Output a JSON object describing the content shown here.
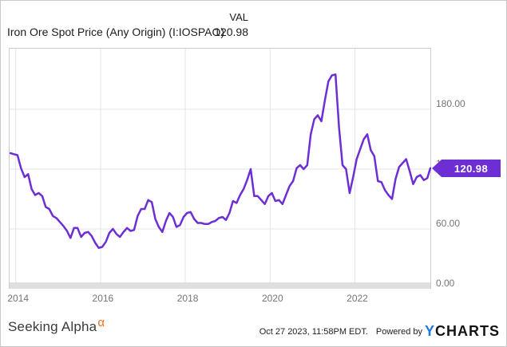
{
  "header": {
    "value_column_label": "VAL",
    "series_title": "Iron Ore Spot Price (Any Origin) (I:IOSPAO)",
    "value": "120.98"
  },
  "badge": {
    "label": "120.98"
  },
  "axes": {
    "y_ticks": [
      "0.00",
      "60.00",
      "120.00",
      "180.00"
    ],
    "y_tick_values": [
      0,
      60,
      120,
      180
    ],
    "x_ticks": [
      "2014",
      "2016",
      "2018",
      "2020",
      "2022"
    ],
    "x_tick_values": [
      2014,
      2016,
      2018,
      2020,
      2022
    ]
  },
  "footer": {
    "brand": "Seeking Alpha",
    "brand_superscript": "α",
    "timestamp": "Oct 27 2023, 11:58PM EDT.",
    "powered_by_label": "Powered by",
    "ycharts_y": "Y",
    "ycharts_rest": "CHARTS"
  },
  "colors": {
    "line": "#6d2ed4",
    "badge": "#6d2ed4",
    "grid": "#e4e4e4",
    "frame": "#cccccc",
    "axis_band": "#dfdfdf",
    "tick_text": "#757575",
    "alpha_orange": "#f26f21",
    "ycharts_blue": "#1d79dd"
  },
  "chart_data": {
    "type": "line",
    "title": "Iron Ore Spot Price (Any Origin) (I:IOSPAO)",
    "frequency": "monthly",
    "x_start": "2013-11",
    "x_end": "2023-10",
    "last_value": 120.98,
    "ylim": [
      0,
      242
    ],
    "yticks": [
      0,
      60,
      120,
      180
    ],
    "xticks": [
      2014,
      2016,
      2018,
      2020,
      2022
    ],
    "grid": true,
    "legend_position": "none",
    "series": [
      {
        "name": "Iron Ore Spot Price (Any Origin)",
        "start": "2013-11",
        "values": [
          136,
          135,
          134,
          121,
          112,
          115,
          100,
          94,
          96,
          93,
          82,
          80,
          73,
          71,
          67,
          63,
          58,
          51,
          61,
          61,
          52,
          56,
          57,
          53,
          46,
          41,
          42,
          47,
          56,
          60,
          55,
          52,
          57,
          61,
          58,
          59,
          73,
          80,
          80,
          89,
          87,
          70,
          62,
          57,
          68,
          76,
          72,
          62,
          64,
          72,
          76,
          77,
          70,
          66,
          66,
          65,
          65,
          67,
          68,
          71,
          72,
          69,
          76,
          88,
          86,
          94,
          100,
          109,
          120,
          93,
          93,
          89,
          85,
          93,
          96,
          88,
          89,
          85,
          94,
          103,
          108,
          121,
          124,
          120,
          124,
          155,
          170,
          174,
          168,
          189,
          208,
          214,
          215,
          162,
          124,
          120,
          96,
          112,
          130,
          140,
          150,
          155,
          139,
          133,
          108,
          107,
          99,
          94,
          90,
          110,
          122,
          126,
          130,
          118,
          105,
          112,
          114,
          109,
          111,
          120.98
        ]
      }
    ]
  }
}
